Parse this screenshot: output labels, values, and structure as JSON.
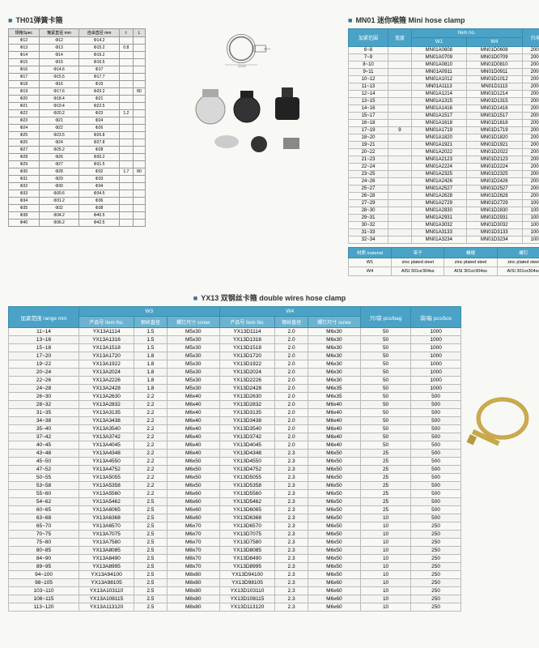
{
  "th01": {
    "title": "TH01弹簧卡箍",
    "headers": [
      "规格Spec",
      "箍紧直径 mm",
      "自由直径 mm",
      "t",
      "L"
    ],
    "rows": [
      [
        "Φ12",
        "Φ12",
        "Φ14.2",
        "",
        ""
      ],
      [
        "Φ13",
        "Φ13",
        "Φ15.2",
        "0.8",
        ""
      ],
      [
        "Φ14",
        "Φ14",
        "Φ16.2",
        "",
        ""
      ],
      [
        "Φ15",
        "Φ15",
        "Φ16.5",
        "",
        ""
      ],
      [
        "Φ16",
        "Φ14.6",
        "Φ17",
        "",
        ""
      ],
      [
        "Φ17",
        "Φ15.5",
        "Φ17.7",
        "",
        ""
      ],
      [
        "Φ18",
        "Φ16",
        "Φ19",
        "",
        ""
      ],
      [
        "Φ19",
        "Φ17.6",
        "Φ20.2",
        "",
        "80"
      ],
      [
        "Φ20",
        "Φ18.4",
        "Φ21",
        "",
        ""
      ],
      [
        "Φ21",
        "Φ19.4",
        "Φ22.5",
        "",
        ""
      ],
      [
        "Φ22",
        "Φ20.2",
        "Φ23",
        "1.2",
        ""
      ],
      [
        "Φ23",
        "Φ21",
        "Φ24",
        "",
        ""
      ],
      [
        "Φ24",
        "Φ22",
        "Φ26",
        "",
        ""
      ],
      [
        "Φ25",
        "Φ23.5",
        "Φ26.8",
        "",
        ""
      ],
      [
        "Φ26",
        "Φ24",
        "Φ27.8",
        "",
        ""
      ],
      [
        "Φ27",
        "Φ25.2",
        "Φ28",
        "",
        ""
      ],
      [
        "Φ28",
        "Φ26",
        "Φ30.2",
        "",
        ""
      ],
      [
        "Φ29",
        "Φ27",
        "Φ31.5",
        "",
        ""
      ],
      [
        "Φ30",
        "Φ28",
        "Φ32",
        "1.7",
        "80"
      ],
      [
        "Φ31",
        "Φ29",
        "Φ33",
        "",
        ""
      ],
      [
        "Φ32",
        "Φ30",
        "Φ34",
        "",
        ""
      ],
      [
        "Φ33",
        "Φ30.6",
        "Φ34.5",
        "",
        ""
      ],
      [
        "Φ34",
        "Φ31.2",
        "Φ36",
        "",
        ""
      ],
      [
        "Φ35",
        "Φ32",
        "Φ38",
        "",
        ""
      ],
      [
        "Φ38",
        "Φ34.2",
        "Φ40.5",
        "",
        ""
      ],
      [
        "Φ40",
        "Φ36.2",
        "Φ42.5",
        "",
        ""
      ]
    ]
  },
  "mn01": {
    "title": "MN01  迷你喉箍  Mini hose clamp",
    "headerTop": [
      "加紧范围 Size mm",
      "宽度 bandwidth mm",
      "Item no.",
      "",
      "包/箱 pcs/box"
    ],
    "headerSub": [
      "",
      "",
      "W1",
      "W4",
      ""
    ],
    "rows": [
      [
        "6~8",
        "",
        "MN01A0608",
        "MN01D0608",
        "2000"
      ],
      [
        "7~9",
        "",
        "MN01A0709",
        "MN01D0709",
        "2000"
      ],
      [
        "8~10",
        "",
        "MN01A0810",
        "MN01D0810",
        "2000"
      ],
      [
        "9~11",
        "",
        "MN01A0911",
        "MN01D0911",
        "2000"
      ],
      [
        "10~12",
        "",
        "MN01A1012",
        "MN01D1012",
        "2000"
      ],
      [
        "11~13",
        "",
        "MN01A1113",
        "MN01D1113",
        "2000"
      ],
      [
        "12~14",
        "",
        "MN01A1214",
        "MN01D1214",
        "2000"
      ],
      [
        "13~15",
        "",
        "MN01A1315",
        "MN01D1315",
        "2000"
      ],
      [
        "14~16",
        "",
        "MN01A1416",
        "MN01D1416",
        "2000"
      ],
      [
        "15~17",
        "",
        "MN01A1517",
        "MN01D1517",
        "2000"
      ],
      [
        "16~18",
        "",
        "MN01A1618",
        "MN01D1618",
        "2000"
      ],
      [
        "17~19",
        "9",
        "MN01A1719",
        "MN01D1719",
        "2000"
      ],
      [
        "18~20",
        "",
        "MN01A1820",
        "MN01D1820",
        "2000"
      ],
      [
        "19~21",
        "",
        "MN01A1921",
        "MN01D1921",
        "2000"
      ],
      [
        "20~22",
        "",
        "MN01A2022",
        "MN01D2022",
        "2000"
      ],
      [
        "21~23",
        "",
        "MN01A2123",
        "MN01D2123",
        "2000"
      ],
      [
        "22~24",
        "",
        "MN01A2224",
        "MN01D2224",
        "2000"
      ],
      [
        "23~25",
        "",
        "MN01A2325",
        "MN01D2325",
        "2000"
      ],
      [
        "24~26",
        "",
        "MN01A2426",
        "MN01D2426",
        "2000"
      ],
      [
        "25~27",
        "",
        "MN01A2527",
        "MN01D2527",
        "2000"
      ],
      [
        "26~28",
        "",
        "MN01A2628",
        "MN01D2628",
        "2000"
      ],
      [
        "27~29",
        "",
        "MN01A2729",
        "MN01D2729",
        "1000"
      ],
      [
        "28~30",
        "",
        "MN01A2830",
        "MN01D2830",
        "1000"
      ],
      [
        "29~31",
        "",
        "MN01A2931",
        "MN01D2931",
        "1000"
      ],
      [
        "30~32",
        "",
        "MN01A3032",
        "MN01D3032",
        "1000"
      ],
      [
        "31~33",
        "",
        "MN01A3133",
        "MN01D3133",
        "1000"
      ],
      [
        "32~34",
        "",
        "MN01A3234",
        "MN01D3234",
        "1000"
      ]
    ],
    "material": {
      "headers": [
        "材质 material",
        "带子",
        "螺帽",
        "螺钉"
      ],
      "rows": [
        [
          "W1",
          "zinc plated steel",
          "zinc plated steel",
          "zinc plated steel"
        ],
        [
          "W4",
          "AISI 301or304ss",
          "AISI 301or304ss",
          "AISI 301or304ss"
        ]
      ]
    }
  },
  "yx13": {
    "title": "YX13  双钢丝卡箍  double wires hose clamp",
    "headerTop": [
      "加紧范围 range mm",
      "W3",
      "",
      "",
      "W4",
      "",
      "",
      "只/袋 pcs/bag",
      "袋/箱 pcs/box"
    ],
    "headerSub": [
      "",
      "产品号 Item No.",
      "钢丝直径 wire dia",
      "螺钉尺寸 screw",
      "产品号 Item No.",
      "钢丝直径 wire dia",
      "螺钉尺寸 screw",
      "",
      ""
    ],
    "rows": [
      [
        "11~14",
        "YX13A1114",
        "1.5",
        "M5x30",
        "YX13D1114",
        "2.0",
        "M6x30",
        "50",
        "1000"
      ],
      [
        "13~16",
        "YX13A1316",
        "1.5",
        "M5x30",
        "YX13D1316",
        "2.0",
        "M6x30",
        "50",
        "1000"
      ],
      [
        "15~18",
        "YX13A1518",
        "1.5",
        "M5x30",
        "YX13D1518",
        "2.0",
        "M6x30",
        "50",
        "1000"
      ],
      [
        "17~20",
        "YX13A1720",
        "1.8",
        "M5x30",
        "YX13D1720",
        "2.0",
        "M6x30",
        "50",
        "1000"
      ],
      [
        "19~22",
        "YX13A1922",
        "1.8",
        "M5x30",
        "YX13D1922",
        "2.0",
        "M6x30",
        "50",
        "1000"
      ],
      [
        "20~24",
        "YX13A2024",
        "1.8",
        "M5x30",
        "YX13D2024",
        "2.0",
        "M6x30",
        "50",
        "1000"
      ],
      [
        "22~26",
        "YX13A2226",
        "1.8",
        "M5x30",
        "YX13D2226",
        "2.0",
        "M6x30",
        "50",
        "1000"
      ],
      [
        "24~28",
        "YX13A2428",
        "1.8",
        "M5x30",
        "YX13D2428",
        "2.0",
        "M6x35",
        "50",
        "1000"
      ],
      [
        "26~30",
        "YX13A2630",
        "2.2",
        "M6x40",
        "YX13D2630",
        "2.0",
        "M6x35",
        "50",
        "500"
      ],
      [
        "28~32",
        "YX13A2832",
        "2.2",
        "M6x40",
        "YX13D2832",
        "2.0",
        "M6x40",
        "50",
        "500"
      ],
      [
        "31~35",
        "YX13A3135",
        "2.2",
        "M6x40",
        "YX13D3135",
        "2.0",
        "M6x40",
        "50",
        "500"
      ],
      [
        "34~38",
        "YX13A3438",
        "2.2",
        "M6x40",
        "YX13D3438",
        "2.0",
        "M6x40",
        "50",
        "500"
      ],
      [
        "35~40",
        "YX13A3540",
        "2.2",
        "M6x40",
        "YX13D3540",
        "2.0",
        "M6x40",
        "50",
        "500"
      ],
      [
        "37~42",
        "YX13A3742",
        "2.2",
        "M6x40",
        "YX13D3742",
        "2.0",
        "M6x40",
        "50",
        "500"
      ],
      [
        "40~45",
        "YX13A4045",
        "2.2",
        "M6x40",
        "YX13D4045",
        "2.0",
        "M6x40",
        "50",
        "500"
      ],
      [
        "43~48",
        "YX13A4348",
        "2.2",
        "M6x40",
        "YX13D4348",
        "2.3",
        "M6x50",
        "25",
        "500"
      ],
      [
        "45~50",
        "YX13A4550",
        "2.2",
        "M6x50",
        "YX13D4550",
        "2.3",
        "M6x50",
        "25",
        "500"
      ],
      [
        "47~52",
        "YX13A4752",
        "2.2",
        "M6x50",
        "YX13D4752",
        "2.3",
        "M6x50",
        "25",
        "500"
      ],
      [
        "50~55",
        "YX13A5055",
        "2.2",
        "M6x50",
        "YX13D5055",
        "2.3",
        "M6x50",
        "25",
        "500"
      ],
      [
        "53~58",
        "YX13A5358",
        "2.2",
        "M6x50",
        "YX13D5358",
        "2.3",
        "M6x50",
        "25",
        "500"
      ],
      [
        "55~60",
        "YX13A5560",
        "2.2",
        "M6x60",
        "YX13D5560",
        "2.3",
        "M6x50",
        "25",
        "500"
      ],
      [
        "54~62",
        "YX13A5462",
        "2.5",
        "M6x60",
        "YX13D5462",
        "2.3",
        "M6x50",
        "25",
        "500"
      ],
      [
        "60~65",
        "YX13A6065",
        "2.5",
        "M6x60",
        "YX13D6065",
        "2.3",
        "M6x50",
        "25",
        "500"
      ],
      [
        "63~68",
        "YX13A6368",
        "2.5",
        "M6x60",
        "YX13D6368",
        "2.3",
        "M6x50",
        "10",
        "500"
      ],
      [
        "65~70",
        "YX13A6570",
        "2.5",
        "M6x70",
        "YX13D6570",
        "2.3",
        "M6x50",
        "10",
        "250"
      ],
      [
        "70~75",
        "YX13A7075",
        "2.5",
        "M6x70",
        "YX13D7075",
        "2.3",
        "M6x50",
        "10",
        "250"
      ],
      [
        "75~80",
        "YX13A7580",
        "2.5",
        "M6x70",
        "YX13D7580",
        "2.3",
        "M6x50",
        "10",
        "250"
      ],
      [
        "80~85",
        "YX13A8085",
        "2.5",
        "M8x70",
        "YX13D8085",
        "2.3",
        "M6x50",
        "10",
        "250"
      ],
      [
        "84~90",
        "YX13A8490",
        "2.5",
        "M8x70",
        "YX13D8490",
        "2.3",
        "M6x50",
        "10",
        "250"
      ],
      [
        "89~95",
        "YX13A8995",
        "2.5",
        "M8x70",
        "YX13D8995",
        "2.3",
        "M6x50",
        "10",
        "250"
      ],
      [
        "94~100",
        "YX13A94100",
        "2.5",
        "M8x80",
        "YX13D94100",
        "2.3",
        "M6x50",
        "10",
        "250"
      ],
      [
        "98~105",
        "YX13A98105",
        "2.5",
        "M8x80",
        "YX13D98105",
        "2.3",
        "M6x60",
        "10",
        "250"
      ],
      [
        "103~110",
        "YX13A103110",
        "2.5",
        "M8x80",
        "YX13D103110",
        "2.3",
        "M6x60",
        "10",
        "250"
      ],
      [
        "108~115",
        "YX13A108115",
        "2.5",
        "M8x80",
        "YX13D108115",
        "2.3",
        "M6x60",
        "10",
        "250"
      ],
      [
        "113~120",
        "YX13A113120",
        "2.5",
        "M8x80",
        "YX13D113120",
        "2.3",
        "M6x60",
        "10",
        "250"
      ]
    ]
  },
  "colors": {
    "header_bg": "#4aa3c7",
    "header_text": "#ffffff",
    "border": "#bbbbbb",
    "alt_row": "#f4f4f2",
    "gold": "#c9a84a"
  }
}
